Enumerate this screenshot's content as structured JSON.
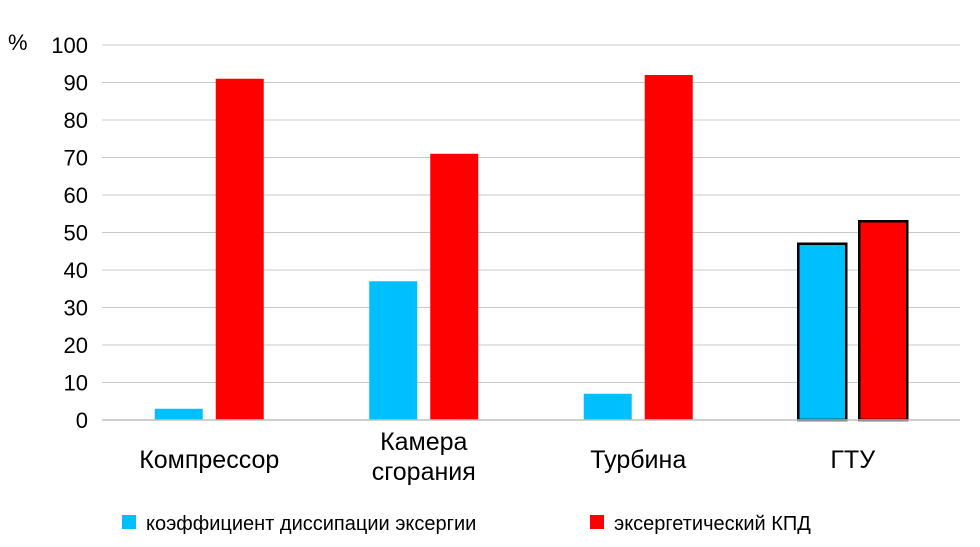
{
  "chart_data": {
    "type": "bar",
    "unit_label": "%",
    "categories": [
      [
        "Компрессор"
      ],
      [
        "Камера",
        "сгорания"
      ],
      [
        "Турбина"
      ],
      [
        "ГТУ"
      ]
    ],
    "series": [
      {
        "name": "коэффициент диссипации эксергии",
        "color": "#00bfff",
        "values": [
          3,
          37,
          7,
          47
        ]
      },
      {
        "name": "эксергетический КПД",
        "color": "#ff0000",
        "values": [
          91,
          71,
          92,
          53
        ]
      }
    ],
    "ylim": [
      0,
      100
    ],
    "yticks": [
      0,
      10,
      20,
      30,
      40,
      50,
      60,
      70,
      80,
      90,
      100
    ],
    "grid": true,
    "outlined_category_index": 3,
    "legend_position": "bottom"
  }
}
